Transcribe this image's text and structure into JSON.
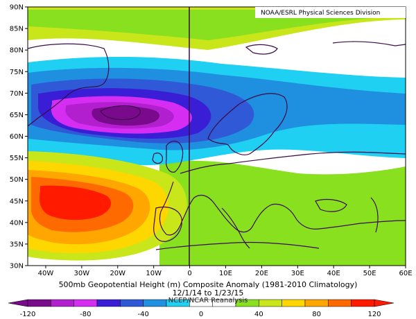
{
  "credit": "NOAA/ESRL Physical Sciences Division",
  "caption": {
    "line1": "500mb Geopotential Height (m) Composite Anomaly (1981-2010 Climatology)",
    "line2": "12/1/14 to 1/23/15",
    "line3": "NCEP/NCAR Reanalysis"
  },
  "axes": {
    "lat_labels": [
      "30N",
      "35N",
      "40N",
      "45N",
      "50N",
      "55N",
      "60N",
      "65N",
      "70N",
      "75N",
      "80N",
      "85N",
      "90N"
    ],
    "lon_labels": [
      "40W",
      "30W",
      "20W",
      "10W",
      "0",
      "10E",
      "20E",
      "30E",
      "40E",
      "50E",
      "60E"
    ]
  },
  "colorbar": {
    "labels": [
      "-120",
      "-80",
      "-40",
      "0",
      "40",
      "80",
      "120"
    ],
    "colors": [
      "#7a0a8c",
      "#b21fcf",
      "#d62df3",
      "#3a1ed6",
      "#2f59d6",
      "#1f8fe0",
      "#1fd0f2",
      "#ffffff",
      "#ffffff",
      "#88e01f",
      "#c8e61a",
      "#ffd700",
      "#ffa600",
      "#ff6a00",
      "#ff1a00"
    ]
  },
  "chart_data": {
    "type": "heatmap",
    "variable": "500mb Geopotential Height (m) Composite Anomaly",
    "lon_range": [
      -45,
      60
    ],
    "lat_range": [
      30,
      90
    ],
    "color_range": [
      -120,
      120
    ],
    "features": [
      {
        "kind": "negative_center",
        "lon": -20,
        "lat": 64,
        "value": -110
      },
      {
        "kind": "positive_center",
        "lon": -35,
        "lat": 45,
        "value": 115
      },
      {
        "kind": "positive_band",
        "lat_range": [
          80,
          87
        ],
        "value": 40
      },
      {
        "kind": "positive_area",
        "region": "southeast",
        "value": 40
      }
    ]
  }
}
